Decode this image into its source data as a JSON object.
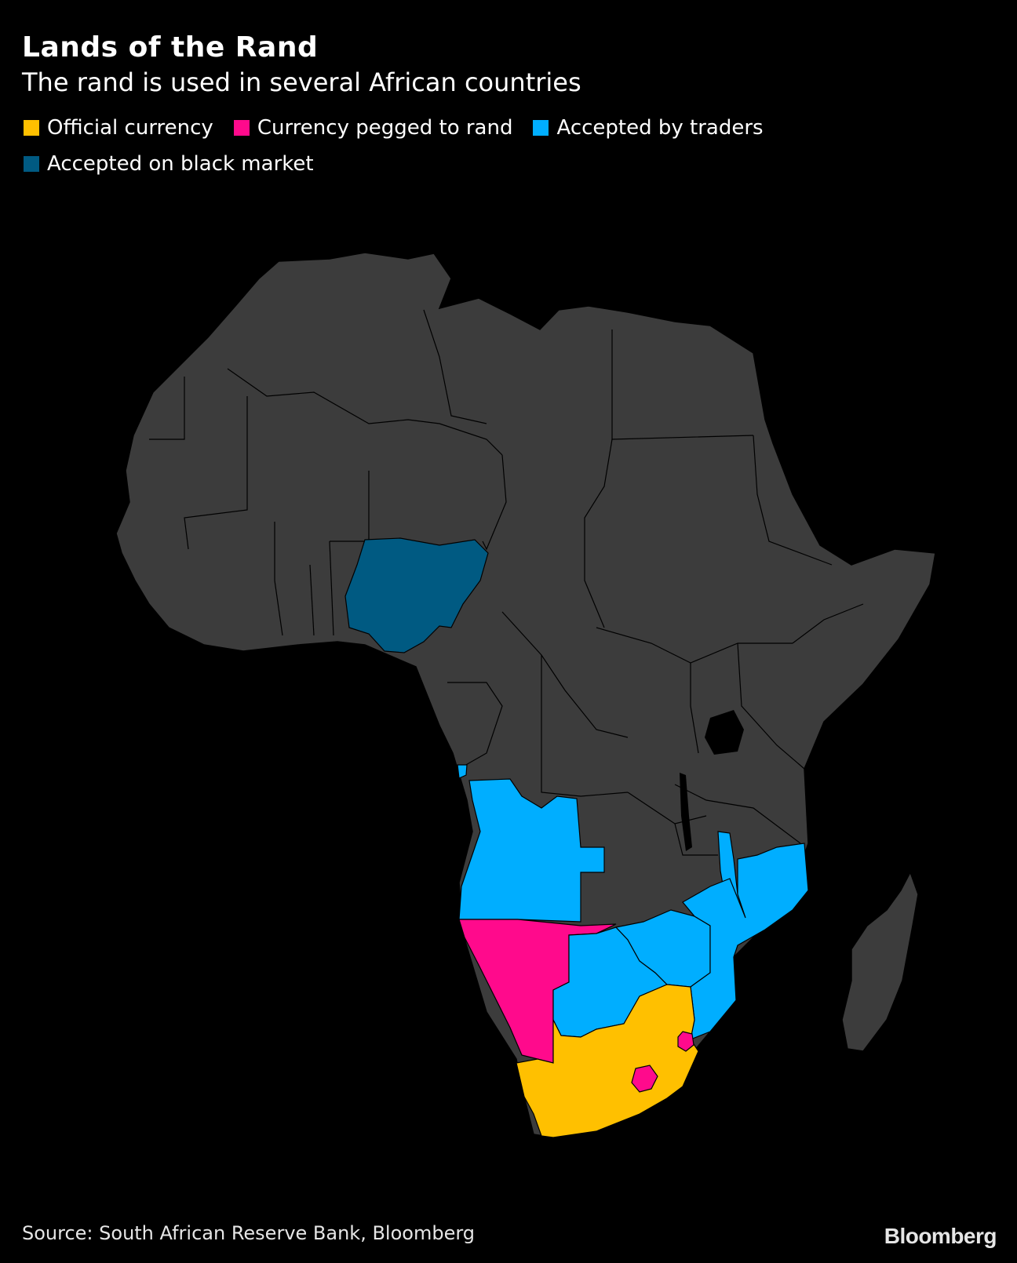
{
  "header": {
    "title": "Lands of the Rand",
    "subtitle": "The rand is used in several African countries"
  },
  "legend": [
    {
      "label": "Official currency",
      "color": "#FFC000"
    },
    {
      "label": "Currency pegged to rand",
      "color": "#FF0A8C"
    },
    {
      "label": "Accepted by traders",
      "color": "#00AEFF"
    },
    {
      "label": "Accepted on black market",
      "color": "#005A82"
    }
  ],
  "map": {
    "land_color": "#3C3C3C",
    "border_color": "#000000",
    "regions": [
      {
        "name": "South Africa",
        "category": "Official currency"
      },
      {
        "name": "Namibia",
        "category": "Currency pegged to rand"
      },
      {
        "name": "Lesotho",
        "category": "Currency pegged to rand"
      },
      {
        "name": "Eswatini",
        "category": "Currency pegged to rand"
      },
      {
        "name": "Angola",
        "category": "Accepted by traders"
      },
      {
        "name": "Botswana",
        "category": "Accepted by traders"
      },
      {
        "name": "Zimbabwe",
        "category": "Accepted by traders"
      },
      {
        "name": "Mozambique",
        "category": "Accepted by traders"
      },
      {
        "name": "Malawi",
        "category": "Accepted by traders"
      },
      {
        "name": "Nigeria",
        "category": "Accepted on black market"
      }
    ]
  },
  "footer": {
    "source": "Source: South African Reserve Bank, Bloomberg",
    "brand": "Bloomberg"
  }
}
